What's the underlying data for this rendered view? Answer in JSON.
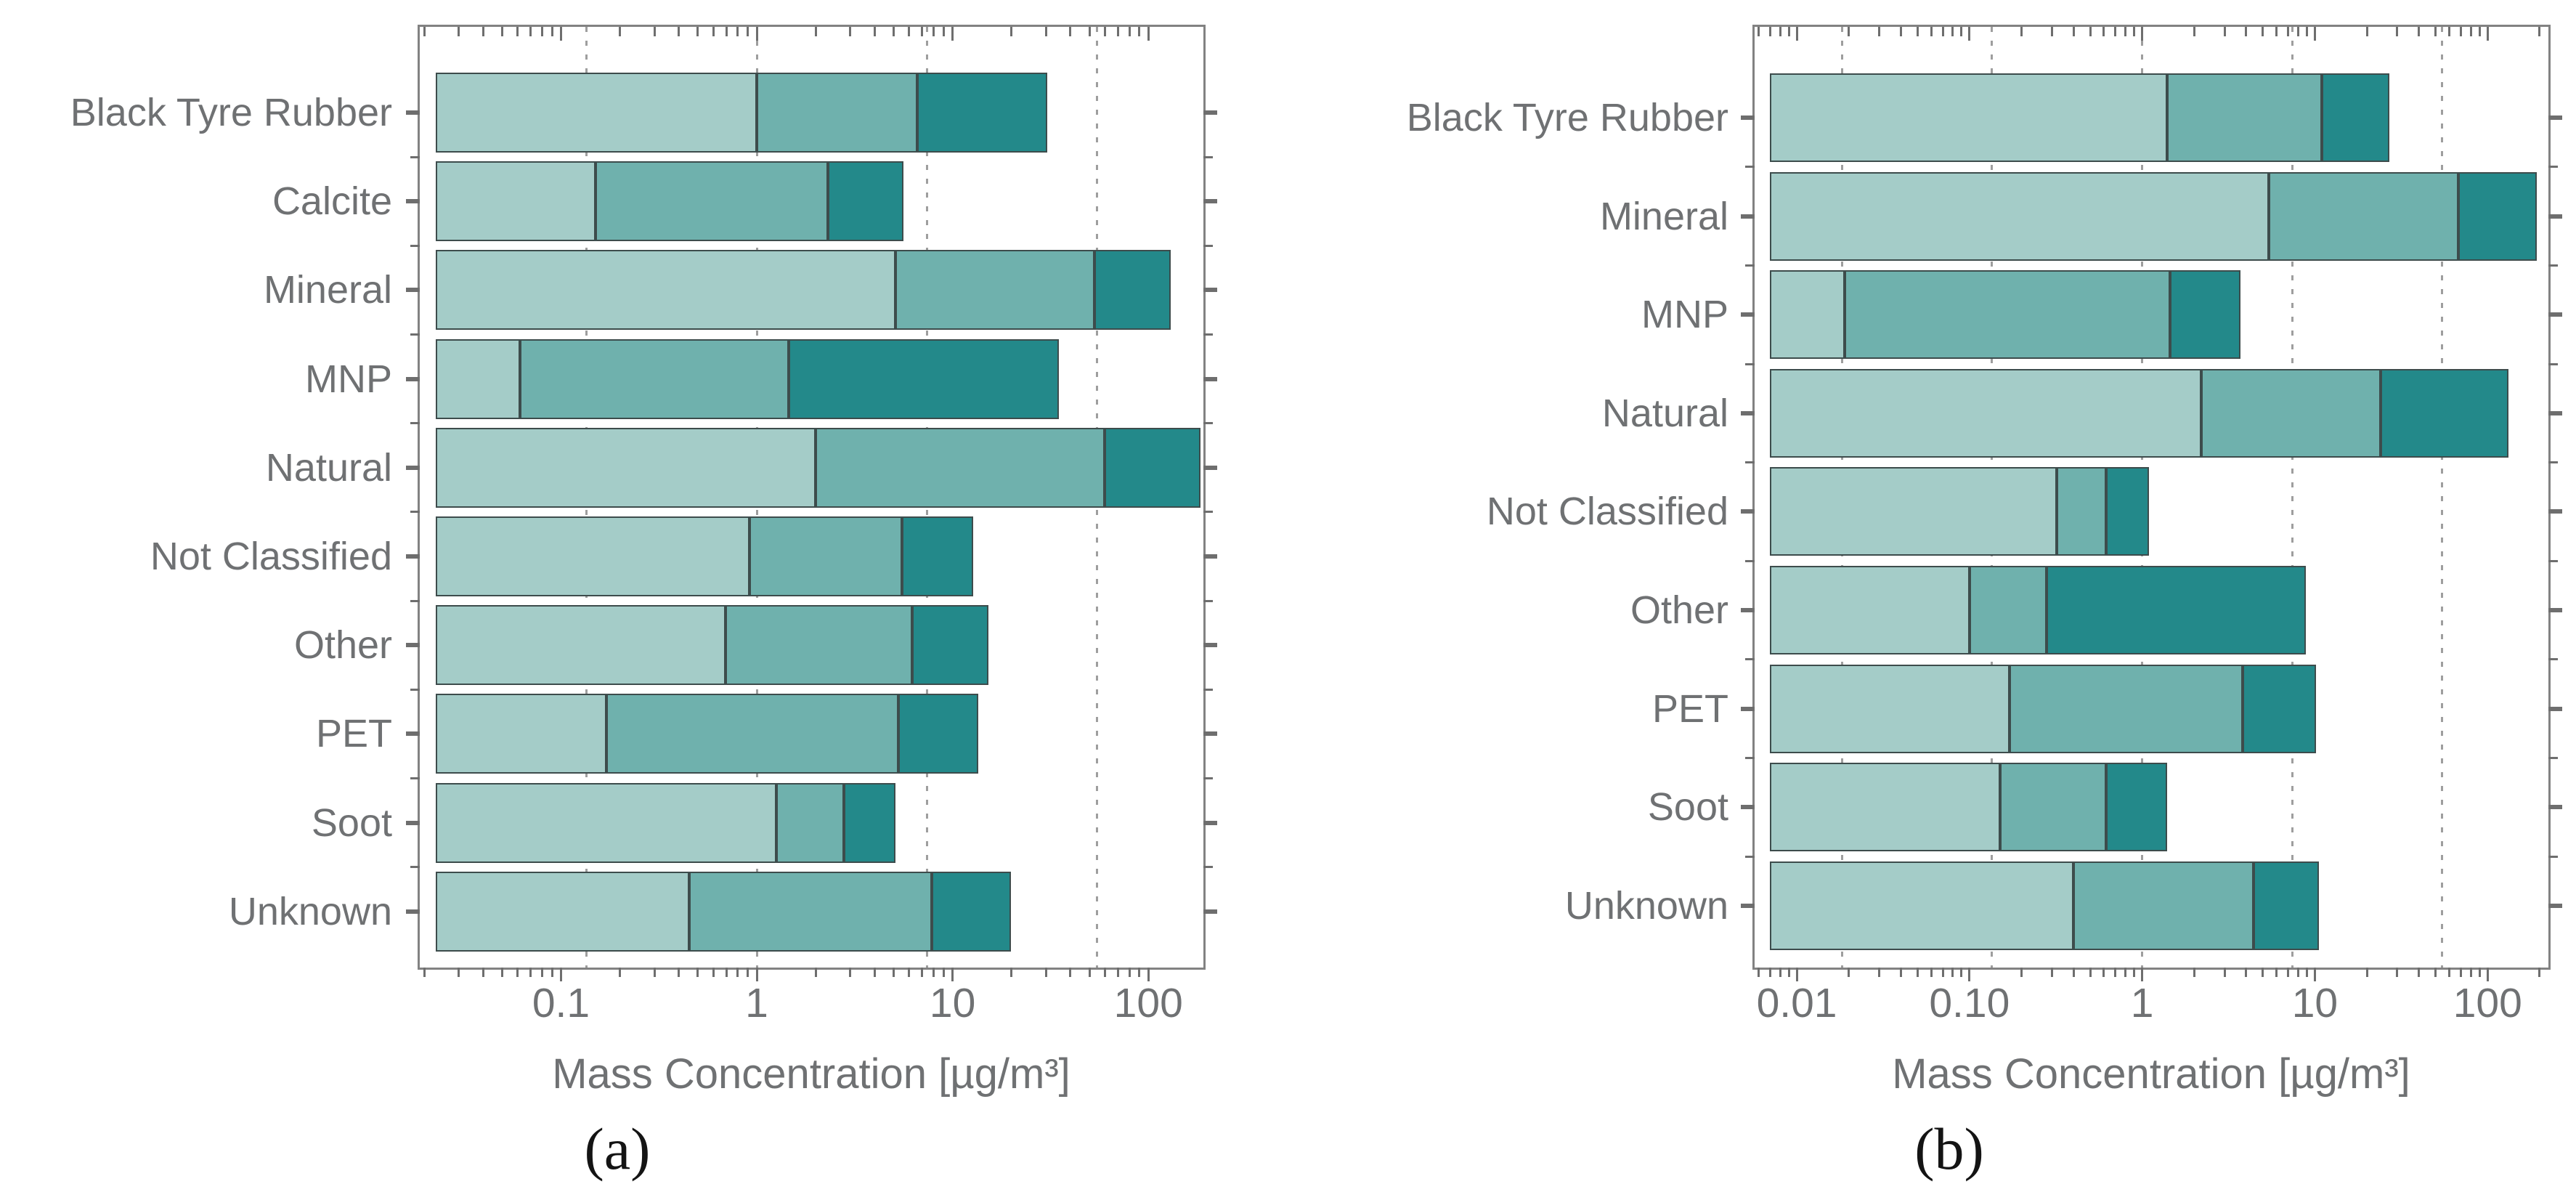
{
  "figure": {
    "background": "#ffffff",
    "frame_color": "#828282",
    "gridline_color": "#9e9e9e",
    "tick_color": "#6e6e6e",
    "text_color": "#6f7173",
    "caption_color": "#141414"
  },
  "chart_data": [
    {
      "type": "bar",
      "orientation": "horizontal",
      "stacked": true,
      "x_scale": "log",
      "grid": "dotted-vertical",
      "caption": "(a)",
      "xlabel": "Mass Concentration [µg/m³]",
      "xlim": [
        0.019,
        191
      ],
      "bar_start": 0.023,
      "gridline_values": [
        0.135,
        1,
        7.39,
        54.6
      ],
      "x_ticks": [
        {
          "label": "0.1",
          "value": 0.1
        },
        {
          "label": "1",
          "value": 1
        },
        {
          "label": "10",
          "value": 10
        },
        {
          "label": "100",
          "value": 100
        }
      ],
      "categories": [
        "Black Tyre Rubber",
        "Calcite",
        "Mineral",
        "MNP",
        "Natural",
        "Not Classified",
        "Other",
        "PET",
        "Soot",
        "Unknown"
      ],
      "series": [
        {
          "name": "segment-light",
          "color": "#a4ccc8",
          "cumulative_values": [
            1.0,
            0.15,
            5.1,
            0.062,
            2.0,
            0.92,
            0.69,
            0.17,
            1.26,
            0.45
          ]
        },
        {
          "name": "segment-medium",
          "color": "#6fb1ad",
          "cumulative_values": [
            6.6,
            2.3,
            53,
            1.45,
            60,
            5.5,
            6.2,
            5.3,
            2.78,
            7.8
          ]
        },
        {
          "name": "segment-dark",
          "color": "#23898a",
          "cumulative_values": [
            30.5,
            5.6,
            130,
            35,
            185,
            12.7,
            15.2,
            13.5,
            5.1,
            19.8
          ]
        }
      ]
    },
    {
      "type": "bar",
      "orientation": "horizontal",
      "stacked": true,
      "x_scale": "log",
      "grid": "dotted-vertical",
      "caption": "(b)",
      "xlabel": "Mass Concentration [µg/m³]",
      "xlim": [
        0.0057,
        225
      ],
      "bar_start": 0.007,
      "gridline_values": [
        0.0183,
        0.135,
        1,
        7.39,
        54.6
      ],
      "x_ticks": [
        {
          "label": "0.01",
          "value": 0.01
        },
        {
          "label": "0.10",
          "value": 0.1
        },
        {
          "label": "1",
          "value": 1
        },
        {
          "label": "10",
          "value": 10
        },
        {
          "label": "100",
          "value": 100
        }
      ],
      "categories": [
        "Black Tyre Rubber",
        "Mineral",
        "MNP",
        "Natural",
        "Not Classified",
        "Other",
        "PET",
        "Soot",
        "Unknown"
      ],
      "series": [
        {
          "name": "segment-light",
          "color": "#a4ccc8",
          "cumulative_values": [
            1.4,
            5.4,
            0.019,
            2.2,
            0.32,
            0.1,
            0.17,
            0.15,
            0.4
          ]
        },
        {
          "name": "segment-medium",
          "color": "#6fb1ad",
          "cumulative_values": [
            11,
            68,
            1.45,
            24,
            0.62,
            0.28,
            3.8,
            0.62,
            4.4
          ]
        },
        {
          "name": "segment-dark",
          "color": "#23898a",
          "cumulative_values": [
            27,
            193,
            3.7,
            132,
            1.1,
            8.9,
            10.2,
            1.4,
            10.6
          ]
        }
      ]
    }
  ]
}
